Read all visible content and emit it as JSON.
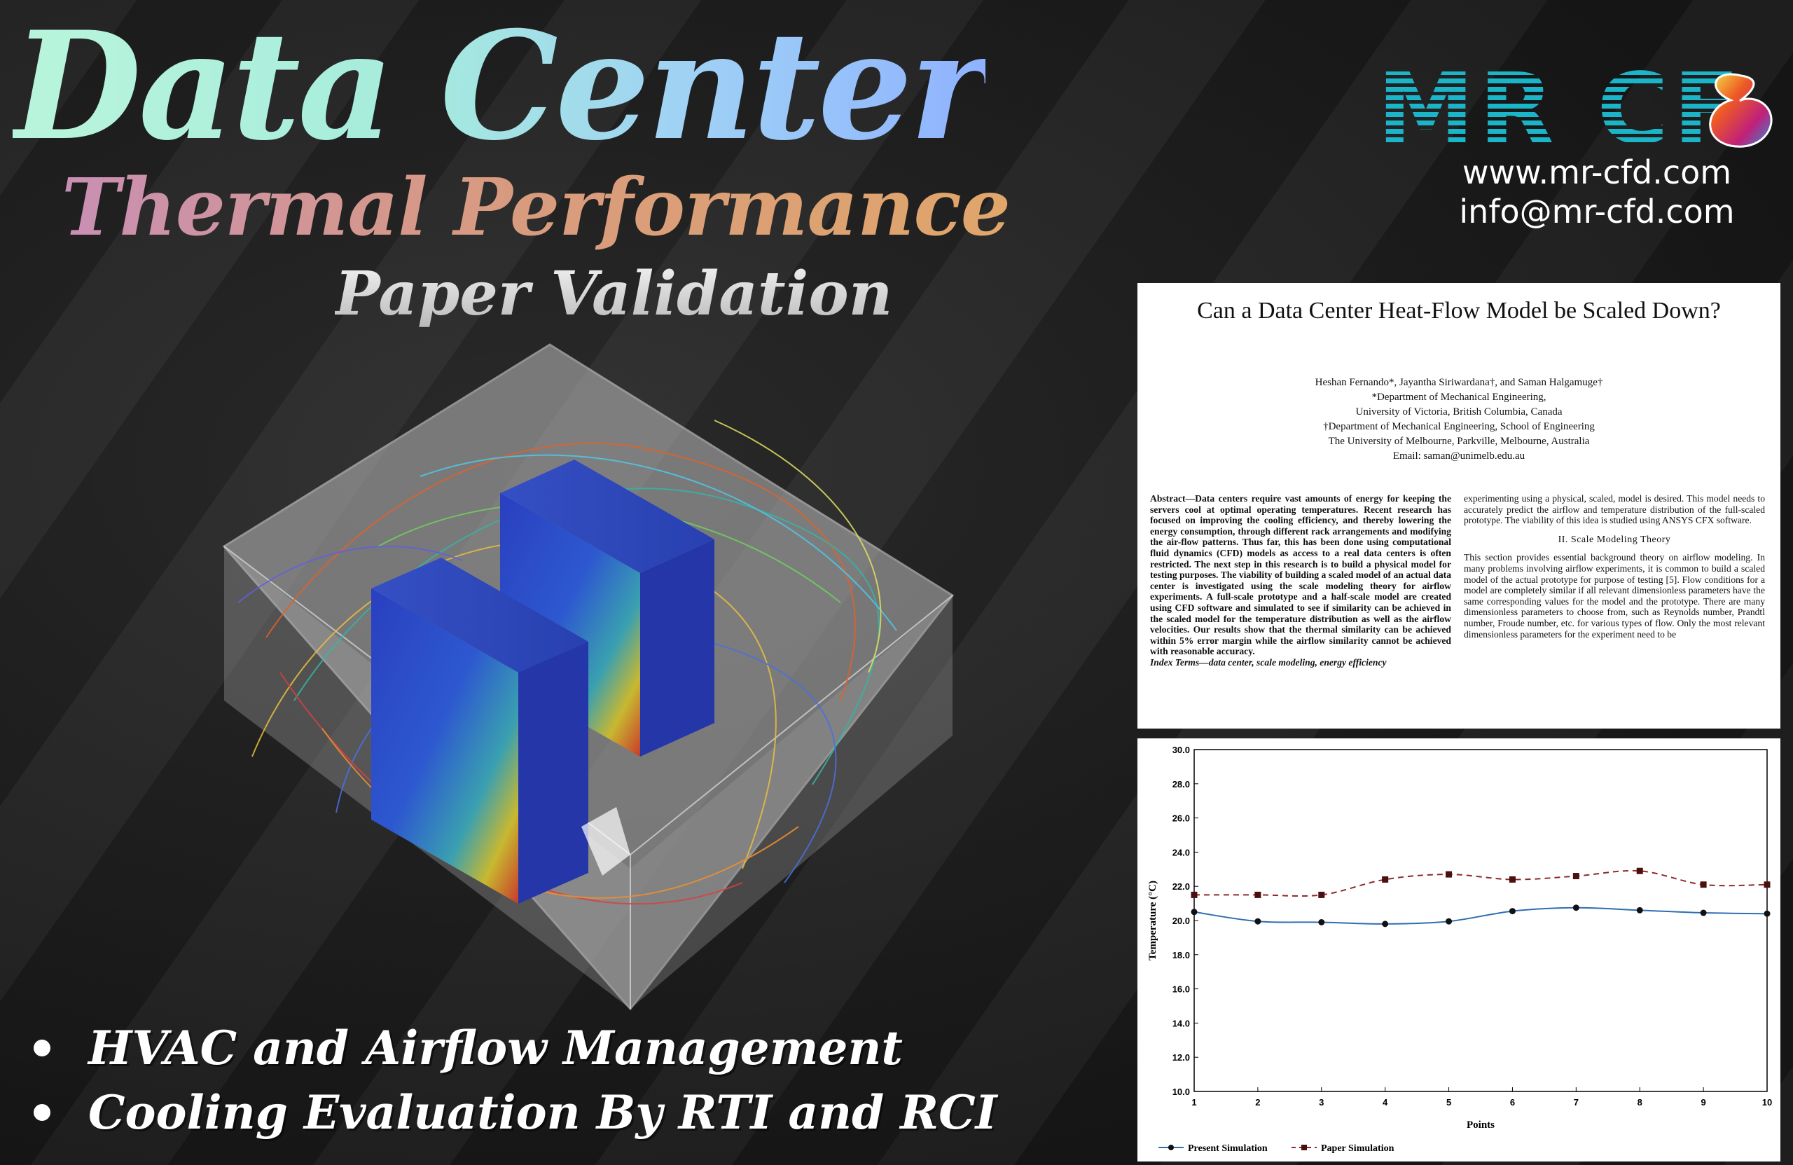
{
  "header": {
    "title": "Data Center",
    "subtitle": "Thermal Performance",
    "tagline": "Paper Validation"
  },
  "brand": {
    "logo_text": "MR CFD",
    "website": "www.mr-cfd.com",
    "email": "info@mr-cfd.com"
  },
  "bullets": [
    "HVAC and Airflow Management",
    "Cooling Evaluation By  RTI and RCI"
  ],
  "paper": {
    "title": "Can a Data Center Heat-Flow Model be Scaled Down?",
    "authors": "Heshan Fernando*, Jayantha Siriwardana†, and Saman Halgamuge†",
    "affil1": "*Department of Mechanical Engineering,",
    "affil2": "University of Victoria, British Columbia, Canada",
    "affil3": "†Department of Mechanical Engineering, School of Engineering",
    "affil4": "The University of Melbourne, Parkville, Melbourne, Australia",
    "email": "Email: saman@unimelb.edu.au",
    "abstract": "Abstract—Data centers require vast amounts of energy for keeping the servers cool at optimal operating temperatures. Recent research has focused on improving the cooling efficiency, and thereby lowering the energy consumption, through different rack arrangements and modifying the air-flow patterns. Thus far, this has been done using computational fluid dynamics (CFD) models as access to a real data centers is often restricted. The next step in this research is to build a physical model for testing purposes. The viability of building a scaled model of an actual data center is investigated using the scale modeling theory for airflow experiments. A full-scale prototype and a half-scale model are created using CFD software and simulated to see if similarity can be achieved in the scaled model for the temperature distribution as well as the airflow velocities. Our results show that the thermal similarity can be achieved within 5% error margin while the airflow similarity cannot be achieved with reasonable accuracy.",
    "index_terms": "Index Terms—data center, scale modeling, energy efficiency",
    "right_intro": "experimenting using a physical, scaled, model is desired. This model needs to accurately predict the airflow and temperature distribution of the full-scaled prototype. The viability of this idea is studied using ANSYS CFX software.",
    "section_heading": "II. Scale Modeling Theory",
    "section_body": "This section provides essential background theory on airflow modeling. In many problems involving airflow experiments, it is common to build a scaled model of the actual prototype for purpose of testing [5]. Flow conditions for a model are completely similar if all relevant dimensionless parameters have the same corresponding values for the model and the prototype. There are many dimensionless parameters to choose from, such as Reynolds number, Prandtl number, Froude number, etc. for various types of flow. Only the most relevant dimensionless parameters for the experiment need to be"
  },
  "chart_data": {
    "type": "line",
    "xlabel": "Points",
    "ylabel": "Temperature (°C)",
    "x": [
      1,
      2,
      3,
      4,
      5,
      6,
      7,
      8,
      9,
      10
    ],
    "xlim": [
      1,
      10
    ],
    "ylim": [
      10,
      30
    ],
    "yticks": [
      "10.0",
      "12.0",
      "14.0",
      "16.0",
      "18.0",
      "20.0",
      "22.0",
      "24.0",
      "26.0",
      "28.0",
      "30.0"
    ],
    "xticks": [
      "1",
      "2",
      "3",
      "4",
      "5",
      "6",
      "7",
      "8",
      "9",
      "10"
    ],
    "grid": false,
    "legend_position": "bottom",
    "series": [
      {
        "name": "Present Simulation",
        "color": "#2f6db0",
        "marker": "circle",
        "line": "solid",
        "values": [
          20.5,
          19.95,
          19.9,
          19.8,
          19.95,
          20.55,
          20.75,
          20.6,
          20.45,
          20.4
        ]
      },
      {
        "name": "Paper Simulation",
        "color": "#8b2a2a",
        "marker": "square",
        "line": "dashed",
        "values": [
          21.5,
          21.5,
          21.5,
          22.4,
          22.7,
          22.4,
          22.6,
          22.9,
          22.1,
          22.1
        ]
      }
    ]
  },
  "colors": {
    "title_gradient": [
      "#b9f5dc",
      "#8fb2ff"
    ],
    "subtitle_gradient": [
      "#c98fb4",
      "#e0a66a"
    ],
    "logo": "#1ab5c8",
    "background": "#1b1b1b"
  },
  "icons": [
    "bullet-dot-icon",
    "delta-logo-icon"
  ]
}
